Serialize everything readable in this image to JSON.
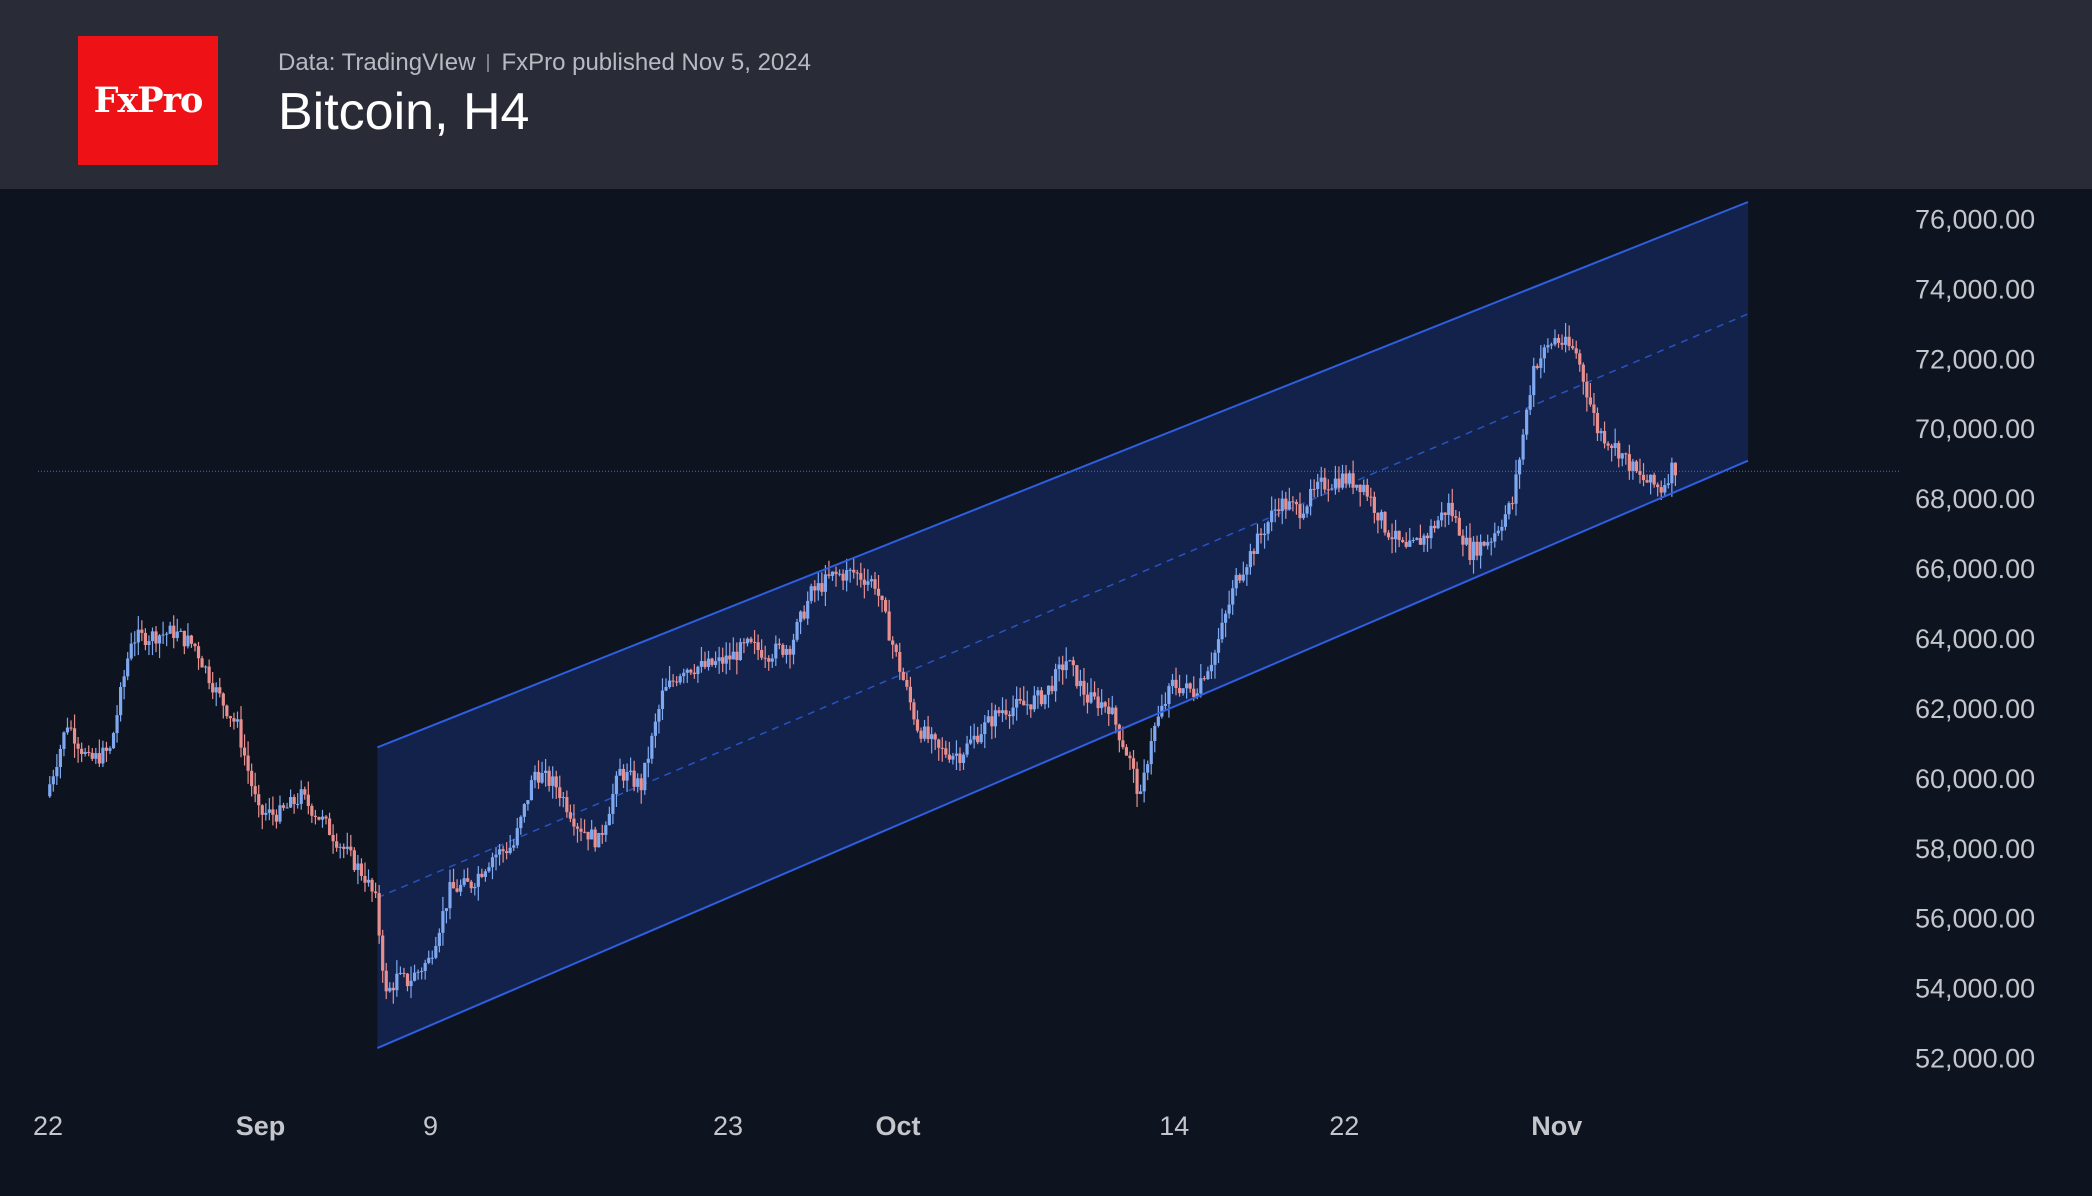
{
  "header": {
    "logo_text": "FxPro",
    "source": "Data: TradingVIew",
    "published": "FxPro published Nov 5, 2024",
    "title": "Bitcoin, H4"
  },
  "colors": {
    "background": "#0d131f",
    "header_bg": "#292b36",
    "logo_bg": "#ee1115",
    "channel_line": "#2e5fe0",
    "channel_fill": "#13234d",
    "candle_up": "#7ea8f0",
    "candle_down": "#e8908f"
  },
  "chart_data": {
    "type": "candlestick",
    "title": "Bitcoin, H4",
    "ylim": [
      51500,
      76500
    ],
    "y_ticks": [
      "76,000.00",
      "74,000.00",
      "72,000.00",
      "70,000.00",
      "68,000.00",
      "66,000.00",
      "64,000.00",
      "62,000.00",
      "60,000.00",
      "58,000.00",
      "56,000.00",
      "54,000.00",
      "52,000.00"
    ],
    "x_range": [
      "2024-08-22",
      "2024-11-10"
    ],
    "x_ticks": [
      {
        "label": "22",
        "date": "2024-08-22",
        "major": false
      },
      {
        "label": "Sep",
        "date": "2024-09-01",
        "major": true
      },
      {
        "label": "9",
        "date": "2024-09-09",
        "major": false
      },
      {
        "label": "23",
        "date": "2024-09-23",
        "major": false
      },
      {
        "label": "Oct",
        "date": "2024-10-01",
        "major": true
      },
      {
        "label": "14",
        "date": "2024-10-14",
        "major": false
      },
      {
        "label": "22",
        "date": "2024-10-22",
        "major": false
      },
      {
        "label": "Nov",
        "date": "2024-11-01",
        "major": true
      }
    ],
    "last_price": 68800,
    "channel": {
      "start_date": "2024-09-06T12:00",
      "end_date": "2024-11-10",
      "upper": [
        60900,
        76500
      ],
      "lower": [
        52300,
        69100
      ],
      "middle": [
        56600,
        73300
      ]
    },
    "price_path": [
      [
        "2024-08-22",
        59500
      ],
      [
        "2024-08-23",
        61600
      ],
      [
        "2024-08-24",
        60500
      ],
      [
        "2024-08-25",
        60800
      ],
      [
        "2024-08-26",
        64000
      ],
      [
        "2024-08-27",
        64100
      ],
      [
        "2024-08-28",
        64200
      ],
      [
        "2024-08-29",
        63800
      ],
      [
        "2024-08-30",
        62500
      ],
      [
        "2024-08-31",
        61500
      ],
      [
        "2024-09-01",
        59000
      ],
      [
        "2024-09-02",
        59000
      ],
      [
        "2024-09-03",
        59500
      ],
      [
        "2024-09-04",
        58800
      ],
      [
        "2024-09-05",
        58000
      ],
      [
        "2024-09-06",
        57200
      ],
      [
        "2024-09-06T12:00",
        56500
      ],
      [
        "2024-09-07",
        53800
      ],
      [
        "2024-09-07T12:00",
        54300
      ],
      [
        "2024-09-08",
        54200
      ],
      [
        "2024-09-09",
        54800
      ],
      [
        "2024-09-10",
        56800
      ],
      [
        "2024-09-11",
        57000
      ],
      [
        "2024-09-12",
        57800
      ],
      [
        "2024-09-13",
        58100
      ],
      [
        "2024-09-14",
        60200
      ],
      [
        "2024-09-15",
        59800
      ],
      [
        "2024-09-16",
        58700
      ],
      [
        "2024-09-17",
        58200
      ],
      [
        "2024-09-18",
        60200
      ],
      [
        "2024-09-19",
        59800
      ],
      [
        "2024-09-20",
        62400
      ],
      [
        "2024-09-21",
        63200
      ],
      [
        "2024-09-22",
        63200
      ],
      [
        "2024-09-23",
        63400
      ],
      [
        "2024-09-24",
        63800
      ],
      [
        "2024-09-25",
        63600
      ],
      [
        "2024-09-26",
        63800
      ],
      [
        "2024-09-27",
        65300
      ],
      [
        "2024-09-28",
        65800
      ],
      [
        "2024-09-29",
        65900
      ],
      [
        "2024-09-30",
        65600
      ],
      [
        "2024-10-01",
        63500
      ],
      [
        "2024-10-02",
        61500
      ],
      [
        "2024-10-03",
        60800
      ],
      [
        "2024-10-04",
        60700
      ],
      [
        "2024-10-05",
        61400
      ],
      [
        "2024-10-06",
        62000
      ],
      [
        "2024-10-07",
        62100
      ],
      [
        "2024-10-08",
        62400
      ],
      [
        "2024-10-09",
        63400
      ],
      [
        "2024-10-10",
        62300
      ],
      [
        "2024-10-11",
        62100
      ],
      [
        "2024-10-12",
        60500
      ],
      [
        "2024-10-12T12:00",
        59400
      ],
      [
        "2024-10-13",
        61200
      ],
      [
        "2024-10-14",
        62700
      ],
      [
        "2024-10-15",
        62500
      ],
      [
        "2024-10-16",
        63600
      ],
      [
        "2024-10-17",
        65700
      ],
      [
        "2024-10-18",
        66800
      ],
      [
        "2024-10-19",
        67900
      ],
      [
        "2024-10-20",
        67700
      ],
      [
        "2024-10-21",
        68400
      ],
      [
        "2024-10-22",
        68600
      ],
      [
        "2024-10-23",
        68400
      ],
      [
        "2024-10-24",
        67200
      ],
      [
        "2024-10-25",
        66500
      ],
      [
        "2024-10-26",
        67000
      ],
      [
        "2024-10-27",
        67800
      ],
      [
        "2024-10-28",
        66500
      ],
      [
        "2024-10-29",
        66900
      ],
      [
        "2024-10-30",
        67900
      ],
      [
        "2024-10-31",
        71800
      ],
      [
        "2024-11-01",
        72600
      ],
      [
        "2024-11-02",
        72200
      ],
      [
        "2024-11-03",
        70000
      ],
      [
        "2024-11-04",
        69400
      ],
      [
        "2024-11-05",
        68600
      ],
      [
        "2024-11-06",
        68300
      ],
      [
        "2024-11-06T12:00",
        68900
      ]
    ]
  }
}
